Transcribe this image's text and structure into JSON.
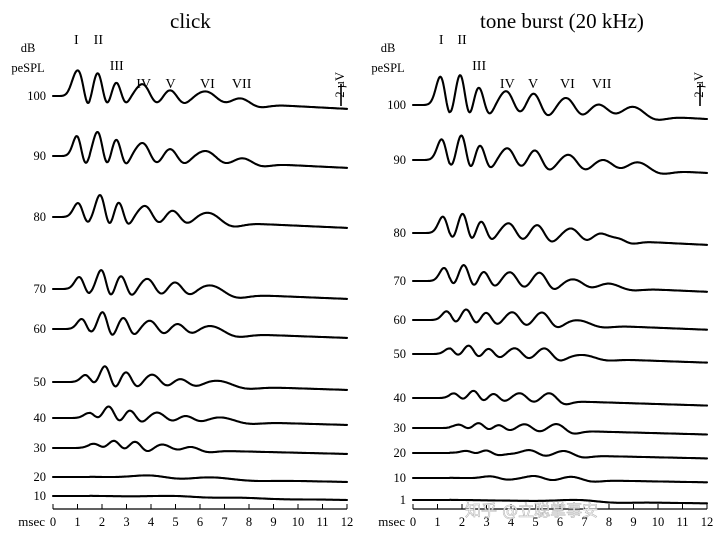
{
  "figure": {
    "watermark": "知乎 @立聪掌事安"
  },
  "chart_data": [
    {
      "type": "line",
      "title": "click",
      "ylabel": "dB peSPL",
      "xlabel": "msec",
      "xlim": [
        0,
        12
      ],
      "x_ticks": [
        0,
        1,
        2,
        3,
        4,
        5,
        6,
        7,
        8,
        9,
        10,
        11,
        12
      ],
      "scale_bar": "2 µV",
      "wave_labels": [
        {
          "label": "I",
          "x": 0.95
        },
        {
          "label": "II",
          "x": 1.85
        },
        {
          "label": "III",
          "x": 2.6
        },
        {
          "label": "IV",
          "x": 3.7
        },
        {
          "label": "V",
          "x": 4.8
        },
        {
          "label": "VI",
          "x": 6.3
        },
        {
          "label": "VII",
          "x": 7.7
        }
      ],
      "series": [
        {
          "name": "100",
          "level": 100,
          "peaks": [
            {
              "t": 0.9,
              "a": 1.5,
              "w": 0.18
            },
            {
              "t": 1.15,
              "a": 2.2,
              "w": 0.17
            },
            {
              "t": 1.85,
              "a": 2.3,
              "w": 0.2
            },
            {
              "t": 2.6,
              "a": 1.5,
              "w": 0.2
            },
            {
              "t": 3.7,
              "a": 1.4,
              "w": 0.3
            },
            {
              "t": 4.8,
              "a": 1.0,
              "w": 0.3
            },
            {
              "t": 6.3,
              "a": 1.0,
              "w": 0.45
            },
            {
              "t": 7.6,
              "a": 0.7,
              "w": 0.45
            }
          ]
        },
        {
          "name": "90",
          "level": 90,
          "peaks": [
            {
              "t": 1.0,
              "a": 2.0,
              "w": 0.18
            },
            {
              "t": 1.85,
              "a": 2.4,
              "w": 0.2
            },
            {
              "t": 2.6,
              "a": 1.8,
              "w": 0.2
            },
            {
              "t": 3.7,
              "a": 1.5,
              "w": 0.3
            },
            {
              "t": 4.8,
              "a": 1.1,
              "w": 0.3
            },
            {
              "t": 6.3,
              "a": 1.0,
              "w": 0.45
            },
            {
              "t": 7.7,
              "a": 0.6,
              "w": 0.45
            }
          ]
        },
        {
          "name": "80",
          "level": 80,
          "peaks": [
            {
              "t": 1.05,
              "a": 1.4,
              "w": 0.2
            },
            {
              "t": 1.95,
              "a": 2.2,
              "w": 0.2
            },
            {
              "t": 2.7,
              "a": 1.6,
              "w": 0.2
            },
            {
              "t": 3.8,
              "a": 1.3,
              "w": 0.3
            },
            {
              "t": 4.9,
              "a": 1.0,
              "w": 0.32
            },
            {
              "t": 6.4,
              "a": 0.9,
              "w": 0.5
            }
          ]
        },
        {
          "name": "70",
          "level": 70,
          "peaks": [
            {
              "t": 1.1,
              "a": 1.2,
              "w": 0.2
            },
            {
              "t": 2.0,
              "a": 1.9,
              "w": 0.2
            },
            {
              "t": 2.8,
              "a": 1.4,
              "w": 0.22
            },
            {
              "t": 3.9,
              "a": 1.2,
              "w": 0.3
            },
            {
              "t": 5.0,
              "a": 1.0,
              "w": 0.32
            },
            {
              "t": 6.5,
              "a": 0.8,
              "w": 0.55
            }
          ]
        },
        {
          "name": "60",
          "level": 60,
          "peaks": [
            {
              "t": 1.2,
              "a": 1.0,
              "w": 0.2
            },
            {
              "t": 2.05,
              "a": 1.7,
              "w": 0.2
            },
            {
              "t": 2.9,
              "a": 1.2,
              "w": 0.22
            },
            {
              "t": 4.0,
              "a": 1.0,
              "w": 0.3
            },
            {
              "t": 5.1,
              "a": 0.8,
              "w": 0.32
            },
            {
              "t": 6.5,
              "a": 0.7,
              "w": 0.55
            }
          ]
        },
        {
          "name": "50",
          "level": 50,
          "peaks": [
            {
              "t": 1.35,
              "a": 0.7,
              "w": 0.2
            },
            {
              "t": 2.15,
              "a": 1.6,
              "w": 0.22
            },
            {
              "t": 3.0,
              "a": 1.1,
              "w": 0.24
            },
            {
              "t": 4.1,
              "a": 0.9,
              "w": 0.32
            },
            {
              "t": 5.2,
              "a": 0.6,
              "w": 0.35
            },
            {
              "t": 6.8,
              "a": 0.5,
              "w": 0.6
            }
          ]
        },
        {
          "name": "40",
          "level": 40,
          "peaks": [
            {
              "t": 1.5,
              "a": 0.5,
              "w": 0.22
            },
            {
              "t": 2.3,
              "a": 1.2,
              "w": 0.24
            },
            {
              "t": 3.15,
              "a": 0.9,
              "w": 0.26
            },
            {
              "t": 4.3,
              "a": 0.7,
              "w": 0.34
            },
            {
              "t": 5.4,
              "a": 0.5,
              "w": 0.36
            },
            {
              "t": 6.9,
              "a": 0.4,
              "w": 0.6
            }
          ]
        },
        {
          "name": "30",
          "level": 30,
          "peaks": [
            {
              "t": 1.7,
              "a": 0.4,
              "w": 0.25
            },
            {
              "t": 2.5,
              "a": 0.8,
              "w": 0.26
            },
            {
              "t": 3.35,
              "a": 0.8,
              "w": 0.28
            },
            {
              "t": 4.5,
              "a": 0.5,
              "w": 0.36
            },
            {
              "t": 5.6,
              "a": 0.4,
              "w": 0.4
            }
          ]
        },
        {
          "name": "20",
          "level": 20,
          "peaks": [
            {
              "t": 4.0,
              "a": 0.25,
              "w": 0.7
            },
            {
              "t": 6.5,
              "a": 0.2,
              "w": 0.9
            }
          ]
        },
        {
          "name": "10",
          "level": 10,
          "peaks": [
            {
              "t": 5.0,
              "a": 0.12,
              "w": 0.9
            },
            {
              "t": 7.5,
              "a": 0.08,
              "w": 1.0
            }
          ]
        }
      ]
    },
    {
      "type": "line",
      "title": "tone burst (20 kHz)",
      "ylabel": "dB peSPL",
      "xlabel": "msec",
      "xlim": [
        0,
        12
      ],
      "x_ticks": [
        0,
        1,
        2,
        3,
        4,
        5,
        6,
        7,
        8,
        9,
        10,
        11,
        12
      ],
      "scale_bar": "2 µV",
      "wave_labels": [
        {
          "label": "I",
          "x": 1.15
        },
        {
          "label": "II",
          "x": 2.0
        },
        {
          "label": "III",
          "x": 2.7
        },
        {
          "label": "IV",
          "x": 3.85
        },
        {
          "label": "V",
          "x": 4.9
        },
        {
          "label": "VI",
          "x": 6.3
        },
        {
          "label": "VII",
          "x": 7.7
        }
      ],
      "series": [
        {
          "name": "100",
          "level": 100,
          "peaks": [
            {
              "t": 1.15,
              "a": 2.6,
              "w": 0.2
            },
            {
              "t": 1.95,
              "a": 2.8,
              "w": 0.2
            },
            {
              "t": 2.7,
              "a": 1.8,
              "w": 0.22
            },
            {
              "t": 3.85,
              "a": 1.5,
              "w": 0.3
            },
            {
              "t": 4.95,
              "a": 1.5,
              "w": 0.3
            },
            {
              "t": 6.3,
              "a": 1.2,
              "w": 0.35
            },
            {
              "t": 7.6,
              "a": 0.8,
              "w": 0.4
            },
            {
              "t": 9.0,
              "a": 0.8,
              "w": 0.5
            }
          ]
        },
        {
          "name": "90",
          "level": 90,
          "peaks": [
            {
              "t": 1.2,
              "a": 1.9,
              "w": 0.2
            },
            {
              "t": 2.0,
              "a": 2.3,
              "w": 0.2
            },
            {
              "t": 2.75,
              "a": 1.5,
              "w": 0.22
            },
            {
              "t": 3.9,
              "a": 1.3,
              "w": 0.3
            },
            {
              "t": 5.0,
              "a": 1.3,
              "w": 0.3
            },
            {
              "t": 6.4,
              "a": 1.0,
              "w": 0.35
            },
            {
              "t": 7.8,
              "a": 0.7,
              "w": 0.4
            },
            {
              "t": 9.2,
              "a": 0.7,
              "w": 0.5
            }
          ]
        },
        {
          "name": "80",
          "level": 80,
          "peaks": [
            {
              "t": 1.25,
              "a": 1.5,
              "w": 0.2
            },
            {
              "t": 2.05,
              "a": 1.8,
              "w": 0.2
            },
            {
              "t": 2.8,
              "a": 1.2,
              "w": 0.22
            },
            {
              "t": 3.95,
              "a": 1.1,
              "w": 0.3
            },
            {
              "t": 5.1,
              "a": 1.1,
              "w": 0.3
            },
            {
              "t": 6.5,
              "a": 0.9,
              "w": 0.35
            },
            {
              "t": 7.6,
              "a": 0.6,
              "w": 0.35
            },
            {
              "t": 8.3,
              "a": 0.5,
              "w": 0.35
            }
          ]
        },
        {
          "name": "70",
          "level": 70,
          "peaks": [
            {
              "t": 1.3,
              "a": 1.2,
              "w": 0.2
            },
            {
              "t": 2.1,
              "a": 1.5,
              "w": 0.22
            },
            {
              "t": 2.9,
              "a": 1.0,
              "w": 0.24
            },
            {
              "t": 4.0,
              "a": 1.0,
              "w": 0.3
            },
            {
              "t": 5.2,
              "a": 1.1,
              "w": 0.3
            },
            {
              "t": 6.6,
              "a": 0.6,
              "w": 0.4
            },
            {
              "t": 8.0,
              "a": 0.4,
              "w": 0.5
            }
          ]
        },
        {
          "name": "60",
          "level": 60,
          "peaks": [
            {
              "t": 1.4,
              "a": 0.8,
              "w": 0.2
            },
            {
              "t": 2.2,
              "a": 1.0,
              "w": 0.22
            },
            {
              "t": 3.0,
              "a": 0.8,
              "w": 0.24
            },
            {
              "t": 4.1,
              "a": 0.9,
              "w": 0.3
            },
            {
              "t": 5.3,
              "a": 1.0,
              "w": 0.32
            },
            {
              "t": 6.8,
              "a": 0.4,
              "w": 0.5
            }
          ]
        },
        {
          "name": "50",
          "level": 50,
          "peaks": [
            {
              "t": 1.5,
              "a": 0.5,
              "w": 0.2
            },
            {
              "t": 2.3,
              "a": 0.8,
              "w": 0.22
            },
            {
              "t": 3.1,
              "a": 0.6,
              "w": 0.24
            },
            {
              "t": 4.2,
              "a": 0.7,
              "w": 0.3
            },
            {
              "t": 5.4,
              "a": 0.8,
              "w": 0.32
            },
            {
              "t": 7.0,
              "a": 0.3,
              "w": 0.5
            }
          ]
        },
        {
          "name": "40",
          "level": 40,
          "peaks": [
            {
              "t": 1.7,
              "a": 0.4,
              "w": 0.2
            },
            {
              "t": 2.5,
              "a": 0.7,
              "w": 0.22
            },
            {
              "t": 3.3,
              "a": 0.5,
              "w": 0.24
            },
            {
              "t": 4.4,
              "a": 0.6,
              "w": 0.3
            },
            {
              "t": 5.6,
              "a": 0.7,
              "w": 0.32
            }
          ]
        },
        {
          "name": "30",
          "level": 30,
          "peaks": [
            {
              "t": 1.9,
              "a": 0.3,
              "w": 0.22
            },
            {
              "t": 2.7,
              "a": 0.5,
              "w": 0.24
            },
            {
              "t": 3.5,
              "a": 0.4,
              "w": 0.26
            },
            {
              "t": 4.6,
              "a": 0.5,
              "w": 0.32
            },
            {
              "t": 5.9,
              "a": 0.6,
              "w": 0.35
            }
          ]
        },
        {
          "name": "20",
          "level": 20,
          "peaks": [
            {
              "t": 2.2,
              "a": 0.2,
              "w": 0.24
            },
            {
              "t": 3.0,
              "a": 0.3,
              "w": 0.26
            },
            {
              "t": 4.8,
              "a": 0.4,
              "w": 0.35
            },
            {
              "t": 6.2,
              "a": 0.4,
              "w": 0.4
            }
          ]
        },
        {
          "name": "10",
          "level": 10,
          "peaks": [
            {
              "t": 3.2,
              "a": 0.2,
              "w": 0.35
            },
            {
              "t": 5.0,
              "a": 0.3,
              "w": 0.4
            },
            {
              "t": 6.5,
              "a": 0.3,
              "w": 0.45
            }
          ]
        },
        {
          "name": "1",
          "level": 1,
          "peaks": [
            {
              "t": 6.8,
              "a": 0.15,
              "w": 0.8
            }
          ]
        }
      ]
    }
  ]
}
